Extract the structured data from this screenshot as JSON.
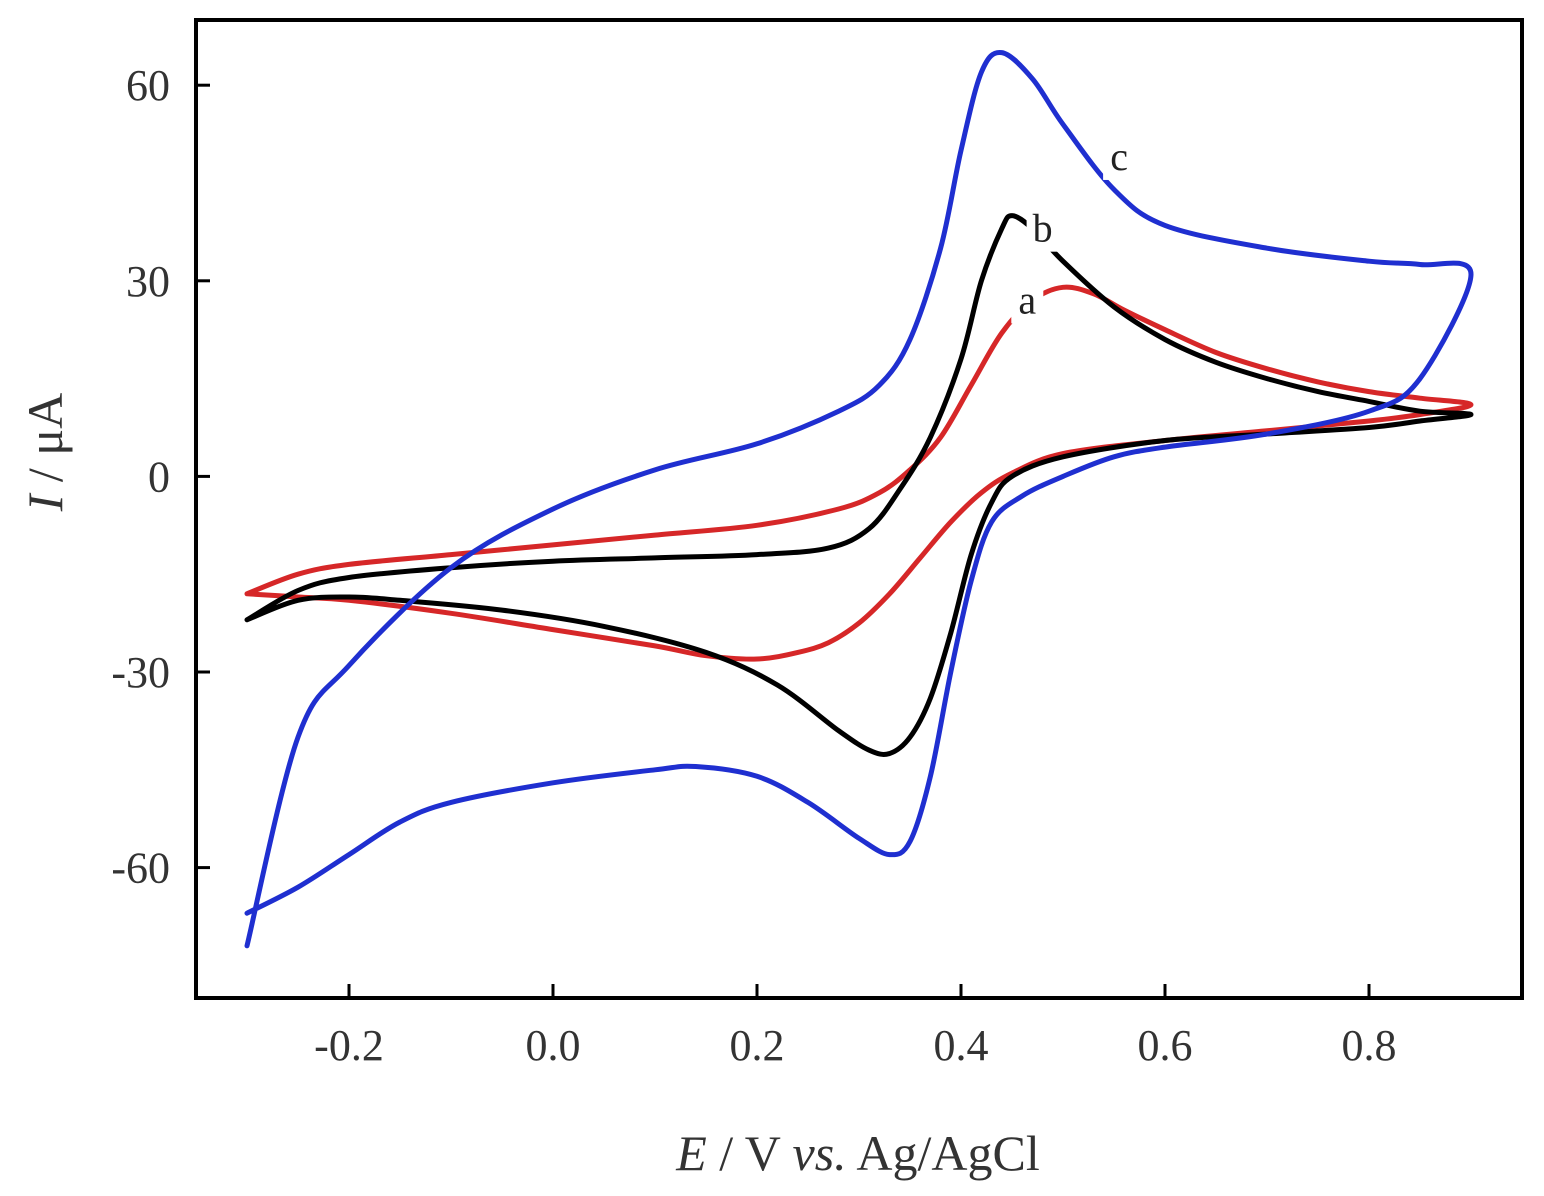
{
  "chart_data": {
    "type": "line",
    "title": "",
    "xlabel": {
      "var": "E",
      "rest": " / V ",
      "italic2": "vs.",
      "tail": " Ag/AgCl"
    },
    "ylabel": {
      "var": "I",
      "rest": " / μA"
    },
    "xlim": [
      -0.35,
      0.95
    ],
    "ylim": [
      -80,
      70
    ],
    "xticks": [
      -0.2,
      0.0,
      0.2,
      0.4,
      0.6,
      0.8
    ],
    "xtick_labels": [
      "-0.2",
      "0.0",
      "0.2",
      "0.4",
      "0.6",
      "0.8"
    ],
    "yticks": [
      -60,
      -30,
      0,
      30,
      60
    ],
    "ytick_labels": [
      "-60",
      "-30",
      "0",
      "30",
      "60"
    ],
    "grid": false,
    "series": [
      {
        "name": "a",
        "color": "#d62728",
        "label_at": [
          0.465,
          25
        ],
        "points": [
          [
            -0.3,
            -18
          ],
          [
            -0.25,
            -15
          ],
          [
            -0.2,
            -13.5
          ],
          [
            -0.1,
            -12
          ],
          [
            0.0,
            -10.5
          ],
          [
            0.1,
            -9
          ],
          [
            0.2,
            -7.5
          ],
          [
            0.28,
            -5
          ],
          [
            0.32,
            -2.5
          ],
          [
            0.35,
            1
          ],
          [
            0.38,
            6
          ],
          [
            0.41,
            14
          ],
          [
            0.44,
            22
          ],
          [
            0.47,
            27
          ],
          [
            0.5,
            29
          ],
          [
            0.53,
            28
          ],
          [
            0.56,
            25.5
          ],
          [
            0.6,
            22.5
          ],
          [
            0.65,
            19
          ],
          [
            0.7,
            16.5
          ],
          [
            0.75,
            14.5
          ],
          [
            0.8,
            13
          ],
          [
            0.85,
            12
          ],
          [
            0.9,
            11
          ],
          [
            0.85,
            9.5
          ],
          [
            0.8,
            8.5
          ],
          [
            0.7,
            7
          ],
          [
            0.6,
            5.5
          ],
          [
            0.5,
            3.5
          ],
          [
            0.45,
            0.5
          ],
          [
            0.42,
            -2.5
          ],
          [
            0.39,
            -7
          ],
          [
            0.36,
            -12.5
          ],
          [
            0.33,
            -18
          ],
          [
            0.3,
            -22.5
          ],
          [
            0.27,
            -25.5
          ],
          [
            0.24,
            -27
          ],
          [
            0.2,
            -28
          ],
          [
            0.15,
            -27.5
          ],
          [
            0.1,
            -26
          ],
          [
            0.0,
            -23.5
          ],
          [
            -0.1,
            -21
          ],
          [
            -0.2,
            -19
          ],
          [
            -0.25,
            -18.5
          ],
          [
            -0.3,
            -18
          ]
        ]
      },
      {
        "name": "b",
        "color": "#000000",
        "label_at": [
          0.48,
          36
        ],
        "points": [
          [
            -0.3,
            -22
          ],
          [
            -0.25,
            -17.5
          ],
          [
            -0.2,
            -15.5
          ],
          [
            -0.1,
            -14
          ],
          [
            0.0,
            -13
          ],
          [
            0.1,
            -12.5
          ],
          [
            0.2,
            -12
          ],
          [
            0.27,
            -11
          ],
          [
            0.31,
            -8
          ],
          [
            0.34,
            -2
          ],
          [
            0.37,
            6
          ],
          [
            0.4,
            18
          ],
          [
            0.42,
            30
          ],
          [
            0.44,
            38
          ],
          [
            0.45,
            40
          ],
          [
            0.47,
            38
          ],
          [
            0.5,
            33
          ],
          [
            0.55,
            26
          ],
          [
            0.6,
            21
          ],
          [
            0.65,
            17.5
          ],
          [
            0.7,
            15
          ],
          [
            0.75,
            13
          ],
          [
            0.8,
            11.5
          ],
          [
            0.85,
            10
          ],
          [
            0.9,
            9.5
          ],
          [
            0.85,
            8.5
          ],
          [
            0.8,
            7.5
          ],
          [
            0.7,
            6.5
          ],
          [
            0.6,
            5.5
          ],
          [
            0.5,
            3
          ],
          [
            0.45,
            0
          ],
          [
            0.43,
            -4
          ],
          [
            0.41,
            -12
          ],
          [
            0.39,
            -24
          ],
          [
            0.37,
            -34
          ],
          [
            0.35,
            -40
          ],
          [
            0.33,
            -42.5
          ],
          [
            0.31,
            -42
          ],
          [
            0.28,
            -39
          ],
          [
            0.22,
            -32
          ],
          [
            0.15,
            -27
          ],
          [
            0.05,
            -23
          ],
          [
            -0.05,
            -20.5
          ],
          [
            -0.15,
            -19
          ],
          [
            -0.2,
            -18.5
          ],
          [
            -0.25,
            -19
          ],
          [
            -0.3,
            -22
          ]
        ]
      },
      {
        "name": "c",
        "color": "#1f2fd0",
        "label_at": [
          0.555,
          47
        ],
        "points": [
          [
            -0.3,
            -67
          ],
          [
            -0.25,
            -63
          ],
          [
            -0.2,
            -58
          ],
          [
            -0.15,
            -53
          ],
          [
            -0.1,
            -50
          ],
          [
            0.0,
            -47
          ],
          [
            0.1,
            -45
          ],
          [
            0.14,
            -44.5
          ],
          [
            0.2,
            -46
          ],
          [
            0.25,
            -50
          ],
          [
            0.3,
            -55.5
          ],
          [
            0.33,
            -58
          ],
          [
            0.35,
            -56
          ],
          [
            0.37,
            -46
          ],
          [
            0.39,
            -30
          ],
          [
            0.41,
            -16
          ],
          [
            0.43,
            -7
          ],
          [
            0.46,
            -3
          ],
          [
            0.5,
            0
          ],
          [
            0.55,
            3
          ],
          [
            0.6,
            4.5
          ],
          [
            0.7,
            6.5
          ],
          [
            0.8,
            10
          ],
          [
            0.85,
            15
          ],
          [
            0.9,
            31
          ],
          [
            0.85,
            32.5
          ],
          [
            0.8,
            33
          ],
          [
            0.7,
            35
          ],
          [
            0.6,
            38.5
          ],
          [
            0.55,
            44
          ],
          [
            0.5,
            54
          ],
          [
            0.47,
            61
          ],
          [
            0.44,
            65
          ],
          [
            0.42,
            62
          ],
          [
            0.4,
            50
          ],
          [
            0.38,
            35
          ],
          [
            0.35,
            21
          ],
          [
            0.32,
            14
          ],
          [
            0.28,
            10
          ],
          [
            0.2,
            5
          ],
          [
            0.1,
            1
          ],
          [
            0.0,
            -5
          ],
          [
            -0.1,
            -14
          ],
          [
            -0.2,
            -29
          ],
          [
            -0.25,
            -40
          ],
          [
            -0.3,
            -72
          ]
        ]
      }
    ]
  }
}
